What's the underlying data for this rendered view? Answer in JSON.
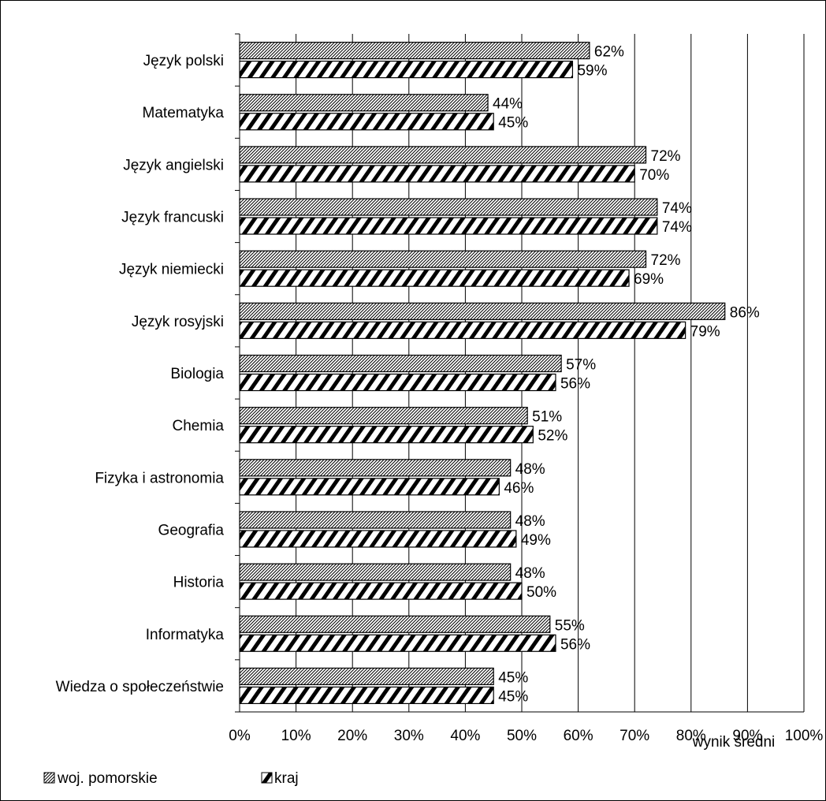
{
  "chart_data": {
    "type": "bar",
    "orientation": "horizontal",
    "categories": [
      "Język polski",
      "Matematyka",
      "Język angielski",
      "Język francuski",
      "Język niemiecki",
      "Język rosyjski",
      "Biologia",
      "Chemia",
      "Fizyka i astronomia",
      "Geografia",
      "Historia",
      "Informatyka",
      "Wiedza o społeczeństwie"
    ],
    "series": [
      {
        "name": "woj. pomorskie",
        "pattern": "fine-hatch",
        "values": [
          62,
          44,
          72,
          74,
          72,
          86,
          57,
          51,
          48,
          48,
          48,
          55,
          45
        ]
      },
      {
        "name": "kraj",
        "pattern": "bold-hatch",
        "values": [
          59,
          45,
          70,
          74,
          69,
          79,
          56,
          52,
          46,
          49,
          50,
          56,
          45
        ]
      }
    ],
    "value_labels": [
      [
        "62%",
        "44%",
        "72%",
        "74%",
        "72%",
        "86%",
        "57%",
        "51%",
        "48%",
        "48%",
        "48%",
        "55%",
        "45%"
      ],
      [
        "59%",
        "45%",
        "70%",
        "74%",
        "69%",
        "79%",
        "56%",
        "52%",
        "46%",
        "49%",
        "50%",
        "56%",
        "45%"
      ]
    ],
    "xlim": [
      0,
      100
    ],
    "x_ticks": [
      0,
      10,
      20,
      30,
      40,
      50,
      60,
      70,
      80,
      90,
      100
    ],
    "x_tick_labels": [
      "0%",
      "10%",
      "20%",
      "30%",
      "40%",
      "50%",
      "60%",
      "70%",
      "80%",
      "90%",
      "100%"
    ],
    "xlabel": "wynik średni",
    "ylabel": "",
    "title": "",
    "grid": true,
    "legend_position": "bottom-left",
    "colors": {
      "bar_fill": "#ffffff",
      "bar_stroke": "#000000",
      "grid": "#000000"
    }
  }
}
